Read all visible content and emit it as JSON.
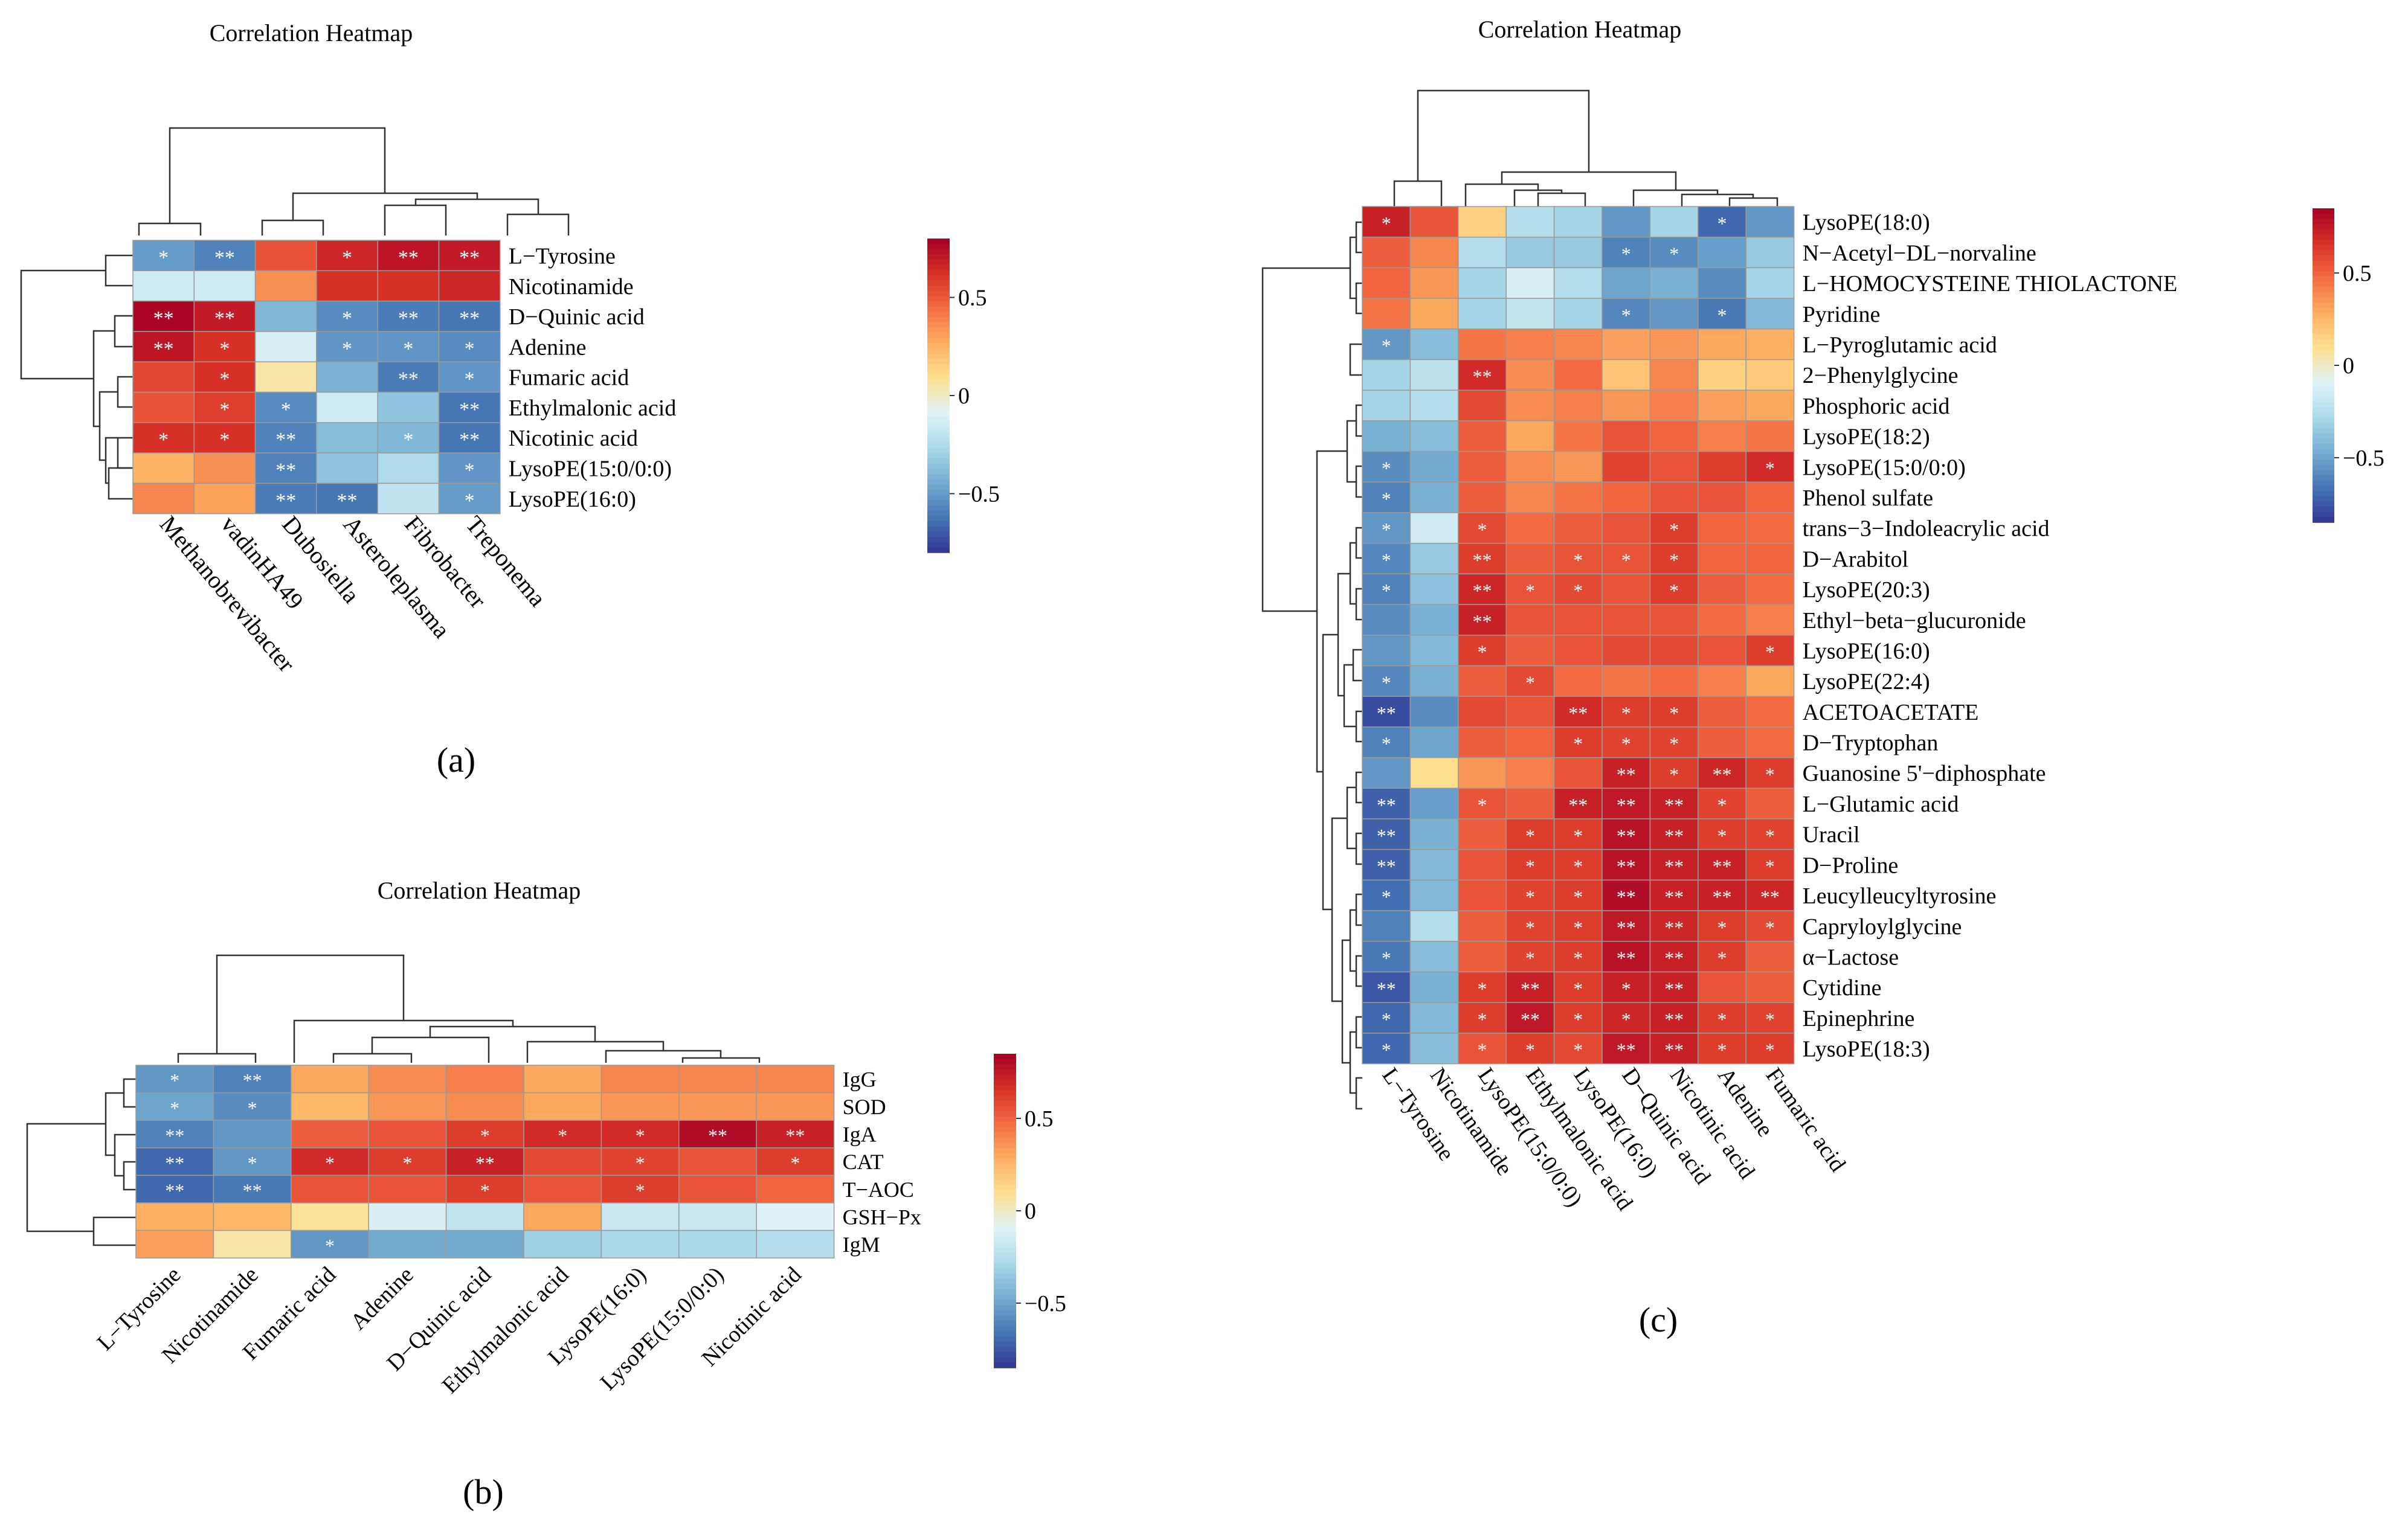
{
  "colorscale": {
    "stops": [
      "#313695",
      "#4575b4",
      "#74add1",
      "#abd9e9",
      "#e0f3f8",
      "#fee090",
      "#fdae61",
      "#f46d43",
      "#d73027",
      "#a50026"
    ]
  },
  "chart_data": [
    {
      "id": "a",
      "type": "heatmap",
      "title": "Correlation Heatmap",
      "caption": "(a)",
      "rows": [
        "L−Tyrosine",
        "Nicotinamide",
        "D−Quinic acid",
        "Adenine",
        "Fumaric acid",
        "Ethylmalonic acid",
        "Nicotinic acid",
        "LysoPE(15:0/0:0)",
        "LysoPE(16:0)"
      ],
      "cols": [
        "Methanobrevibacter",
        "vadinHA49",
        "Dubosiella",
        "Asteroleplasma",
        "Fibrobacter",
        "Treponema"
      ],
      "values": [
        [
          -0.5,
          -0.58,
          0.52,
          0.66,
          0.72,
          0.7
        ],
        [
          -0.15,
          -0.15,
          0.35,
          0.62,
          0.62,
          0.66
        ],
        [
          0.78,
          0.7,
          -0.4,
          -0.55,
          -0.6,
          -0.62
        ],
        [
          0.72,
          0.62,
          -0.12,
          -0.52,
          -0.52,
          -0.55
        ],
        [
          0.55,
          0.62,
          0.05,
          -0.42,
          -0.6,
          -0.52
        ],
        [
          0.52,
          0.58,
          -0.55,
          -0.15,
          -0.35,
          -0.62
        ],
        [
          0.62,
          0.62,
          -0.58,
          -0.38,
          -0.4,
          -0.62
        ],
        [
          0.25,
          0.35,
          -0.58,
          -0.35,
          -0.25,
          -0.52
        ],
        [
          0.38,
          0.3,
          -0.6,
          -0.62,
          -0.2,
          -0.5
        ]
      ],
      "stars": [
        [
          "*",
          "**",
          "",
          "*",
          "**",
          "**"
        ],
        [
          "",
          "",
          "",
          "",
          "",
          ""
        ],
        [
          "**",
          "**",
          "",
          "*",
          "**",
          "**"
        ],
        [
          "**",
          "*",
          "",
          "*",
          "*",
          "*"
        ],
        [
          "",
          "*",
          "",
          "",
          "**",
          "*"
        ],
        [
          "",
          "*",
          "*",
          "",
          "",
          "**"
        ],
        [
          "*",
          "*",
          "**",
          "",
          "*",
          "**"
        ],
        [
          "",
          "",
          "**",
          "",
          "",
          "*"
        ],
        [
          "",
          "",
          "**",
          "**",
          "",
          "*"
        ]
      ],
      "legend_ticks": [
        0.5,
        0,
        -0.5
      ],
      "legend_range": [
        -0.8,
        0.8
      ]
    },
    {
      "id": "b",
      "type": "heatmap",
      "title": "Correlation Heatmap",
      "caption": "(b)",
      "rows": [
        "IgG",
        "SOD",
        "IgA",
        "CAT",
        "T−AOC",
        "GSH−Px",
        "IgM"
      ],
      "cols": [
        "L−Tyrosine",
        "Nicotinamide",
        "Fumaric acid",
        "Adenine",
        "D−Quinic acid",
        "Ethylmalonic acid",
        "LysoPE(16:0)",
        "LysoPE(15:0/0:0)",
        "Nicotinic acid"
      ],
      "values": [
        [
          -0.55,
          -0.62,
          0.3,
          0.38,
          0.42,
          0.3,
          0.4,
          0.4,
          0.4
        ],
        [
          -0.5,
          -0.58,
          0.25,
          0.35,
          0.38,
          0.3,
          0.35,
          0.35,
          0.35
        ],
        [
          -0.62,
          -0.55,
          0.52,
          0.55,
          0.62,
          0.68,
          0.68,
          0.8,
          0.72
        ],
        [
          -0.7,
          -0.55,
          0.68,
          0.62,
          0.72,
          0.58,
          0.6,
          0.55,
          0.62
        ],
        [
          -0.7,
          -0.65,
          0.55,
          0.55,
          0.62,
          0.55,
          0.62,
          0.55,
          0.5
        ],
        [
          0.28,
          0.25,
          0.08,
          -0.12,
          -0.2,
          0.3,
          -0.18,
          -0.18,
          -0.1
        ],
        [
          0.32,
          0.05,
          -0.55,
          -0.48,
          -0.48,
          -0.32,
          -0.28,
          -0.28,
          -0.25
        ]
      ],
      "stars": [
        [
          "*",
          "**",
          "",
          "",
          "",
          "",
          "",
          "",
          ""
        ],
        [
          "*",
          "*",
          "",
          "",
          "",
          "",
          "",
          "",
          ""
        ],
        [
          "**",
          "",
          "",
          "",
          "*",
          "*",
          "*",
          "**",
          "**"
        ],
        [
          "**",
          "*",
          "*",
          "*",
          "**",
          "",
          "*",
          "",
          "*"
        ],
        [
          "**",
          "**",
          "",
          "",
          "*",
          "",
          "*",
          "",
          ""
        ],
        [
          "",
          "",
          "",
          "",
          "",
          "",
          "",
          "",
          ""
        ],
        [
          "",
          "",
          "*",
          "",
          "",
          "",
          "",
          "",
          ""
        ]
      ],
      "legend_ticks": [
        0.5,
        0,
        -0.5
      ],
      "legend_range": [
        -0.85,
        0.85
      ]
    },
    {
      "id": "c",
      "type": "heatmap",
      "title": "Correlation Heatmap",
      "caption": "(c)",
      "rows": [
        "LysoPE(18:0)",
        "N−Acetyl−DL−norvaline",
        "L−HOMOCYSTEINE THIOLACTONE",
        "Pyridine",
        "L−Pyroglutamic acid",
        "2−Phenylglycine",
        "Phosphoric acid",
        "LysoPE(18:2)",
        "LysoPE(15:0/0:0)",
        "Phenol sulfate",
        "trans−3−Indoleacrylic acid",
        "D−Arabitol",
        "LysoPE(20:3)",
        "Ethyl−beta−glucuronide",
        "LysoPE(16:0)",
        "LysoPE(22:4)",
        "ACETOACETATE",
        "D−Tryptophan",
        "Guanosine 5'−diphosphate",
        "L−Glutamic acid",
        "Uracil",
        "D−Proline",
        "Leucylleucyltyrosine",
        "Capryloylglycine",
        "α−Lactose",
        "Cytidine",
        "Epinephrine",
        "LysoPE(18:3)"
      ],
      "cols": [
        "L−Tyrosine",
        "Nicotinamide",
        "LysoPE(15:0/0:0)",
        "Ethylmalonic acid",
        "LysoPE(16:0)",
        "D−Quinic acid",
        "Nicotinic acid",
        "Adenine",
        "Fumaric acid"
      ],
      "values": [
        [
          0.72,
          0.55,
          0.15,
          -0.25,
          -0.3,
          -0.55,
          -0.3,
          -0.7,
          -0.55
        ],
        [
          0.52,
          0.4,
          -0.25,
          -0.35,
          -0.35,
          -0.62,
          -0.58,
          -0.52,
          -0.35
        ],
        [
          0.5,
          0.35,
          -0.3,
          -0.12,
          -0.25,
          -0.5,
          -0.45,
          -0.58,
          -0.3
        ],
        [
          0.45,
          0.3,
          -0.3,
          -0.2,
          -0.3,
          -0.6,
          -0.55,
          -0.65,
          -0.42
        ],
        [
          -0.55,
          -0.4,
          0.45,
          0.42,
          0.4,
          0.32,
          0.35,
          0.3,
          0.28
        ],
        [
          -0.3,
          -0.22,
          0.68,
          0.38,
          0.48,
          0.2,
          0.4,
          0.15,
          0.18
        ],
        [
          -0.3,
          -0.25,
          0.58,
          0.38,
          0.42,
          0.35,
          0.42,
          0.32,
          0.3
        ],
        [
          -0.45,
          -0.4,
          0.52,
          0.3,
          0.45,
          0.55,
          0.5,
          0.42,
          0.45
        ],
        [
          -0.58,
          -0.48,
          0.52,
          0.38,
          0.35,
          0.6,
          0.55,
          0.62,
          0.68
        ],
        [
          -0.62,
          -0.45,
          0.52,
          0.4,
          0.45,
          0.5,
          0.55,
          0.55,
          0.5
        ],
        [
          -0.55,
          -0.15,
          0.58,
          0.48,
          0.52,
          0.55,
          0.62,
          0.5,
          0.48
        ],
        [
          -0.6,
          -0.35,
          0.62,
          0.52,
          0.55,
          0.55,
          0.62,
          0.5,
          0.5
        ],
        [
          -0.62,
          -0.38,
          0.7,
          0.55,
          0.58,
          0.55,
          0.62,
          0.52,
          0.48
        ],
        [
          -0.58,
          -0.45,
          0.72,
          0.55,
          0.55,
          0.55,
          0.55,
          0.48,
          0.42
        ],
        [
          -0.55,
          -0.42,
          0.62,
          0.52,
          0.55,
          0.58,
          0.58,
          0.55,
          0.62
        ],
        [
          -0.6,
          -0.45,
          0.52,
          0.58,
          0.48,
          0.45,
          0.48,
          0.42,
          0.3
        ],
        [
          -0.78,
          -0.58,
          0.58,
          0.55,
          0.68,
          0.62,
          0.62,
          0.52,
          0.48
        ],
        [
          -0.62,
          -0.5,
          0.52,
          0.5,
          0.62,
          0.6,
          0.6,
          0.52,
          0.48
        ],
        [
          -0.55,
          0.1,
          0.35,
          0.42,
          0.55,
          0.72,
          0.62,
          0.7,
          0.62
        ],
        [
          -0.72,
          -0.52,
          0.55,
          0.52,
          0.72,
          0.75,
          0.72,
          0.6,
          0.52
        ],
        [
          -0.72,
          -0.45,
          0.52,
          0.62,
          0.62,
          0.78,
          0.72,
          0.62,
          0.6
        ],
        [
          -0.72,
          -0.42,
          0.55,
          0.62,
          0.62,
          0.78,
          0.72,
          0.72,
          0.62
        ],
        [
          -0.68,
          -0.42,
          0.55,
          0.6,
          0.62,
          0.8,
          0.72,
          0.72,
          0.7
        ],
        [
          -0.62,
          -0.25,
          0.52,
          0.6,
          0.62,
          0.75,
          0.7,
          0.62,
          0.58
        ],
        [
          -0.65,
          -0.4,
          0.52,
          0.6,
          0.62,
          0.78,
          0.72,
          0.62,
          0.52
        ],
        [
          -0.75,
          -0.45,
          0.62,
          0.72,
          0.62,
          0.72,
          0.72,
          0.55,
          0.52
        ],
        [
          -0.7,
          -0.42,
          0.62,
          0.75,
          0.62,
          0.7,
          0.72,
          0.62,
          0.6
        ],
        [
          -0.7,
          -0.4,
          0.55,
          0.62,
          0.58,
          0.75,
          0.72,
          0.62,
          0.62
        ]
      ],
      "stars": [
        [
          "*",
          "",
          "",
          "",
          "",
          "",
          "",
          "*",
          ""
        ],
        [
          "",
          "",
          "",
          "",
          "",
          "*",
          "*",
          "",
          ""
        ],
        [
          "",
          "",
          "",
          "",
          "",
          "",
          "",
          "",
          ""
        ],
        [
          "",
          "",
          "",
          "",
          "",
          "*",
          "",
          "*",
          ""
        ],
        [
          "*",
          "",
          "",
          "",
          "",
          "",
          "",
          "",
          ""
        ],
        [
          "",
          "",
          "**",
          "",
          "",
          "",
          "",
          "",
          ""
        ],
        [
          "",
          "",
          "",
          "",
          "",
          "",
          "",
          "",
          ""
        ],
        [
          "",
          "",
          "",
          "",
          "",
          "",
          "",
          "",
          ""
        ],
        [
          "*",
          "",
          "",
          "",
          "",
          "",
          "",
          "",
          "*"
        ],
        [
          "*",
          "",
          "",
          "",
          "",
          "",
          "",
          "",
          ""
        ],
        [
          "*",
          "",
          "*",
          "",
          "",
          "",
          "*",
          "",
          ""
        ],
        [
          "*",
          "",
          "**",
          "",
          "*",
          "*",
          "*",
          "",
          ""
        ],
        [
          "*",
          "",
          "**",
          "*",
          "*",
          "",
          "*",
          "",
          ""
        ],
        [
          "",
          "",
          "**",
          "",
          "",
          "",
          "",
          "",
          ""
        ],
        [
          "",
          "",
          "*",
          "",
          "",
          "",
          "",
          "",
          "*"
        ],
        [
          "*",
          "",
          "",
          "*",
          "",
          "",
          "",
          "",
          ""
        ],
        [
          "**",
          "",
          "",
          "",
          "**",
          "*",
          "*",
          "",
          ""
        ],
        [
          "*",
          "",
          "",
          "",
          "*",
          "*",
          "*",
          "",
          ""
        ],
        [
          "",
          "",
          "",
          "",
          "",
          "**",
          "*",
          "**",
          "*"
        ],
        [
          "**",
          "",
          "*",
          "",
          "**",
          "**",
          "**",
          "*",
          ""
        ],
        [
          "**",
          "",
          "",
          "*",
          "*",
          "**",
          "**",
          "*",
          "*"
        ],
        [
          "**",
          "",
          "",
          "*",
          "*",
          "**",
          "**",
          "**",
          "*"
        ],
        [
          "*",
          "",
          "",
          "*",
          "*",
          "**",
          "**",
          "**",
          "**"
        ],
        [
          "",
          "",
          "",
          "*",
          "*",
          "**",
          "**",
          "*",
          "*"
        ],
        [
          "*",
          "",
          "",
          "*",
          "*",
          "**",
          "**",
          "*",
          ""
        ],
        [
          "**",
          "",
          "*",
          "**",
          "*",
          "*",
          "**",
          "",
          ""
        ],
        [
          "*",
          "",
          "*",
          "**",
          "*",
          "*",
          "**",
          "*",
          "*"
        ],
        [
          "*",
          "",
          "*",
          "*",
          "*",
          "**",
          "**",
          "*",
          "*"
        ]
      ],
      "legend_ticks": [
        0.5,
        0,
        -0.5
      ],
      "legend_range": [
        -0.85,
        0.85
      ]
    }
  ]
}
